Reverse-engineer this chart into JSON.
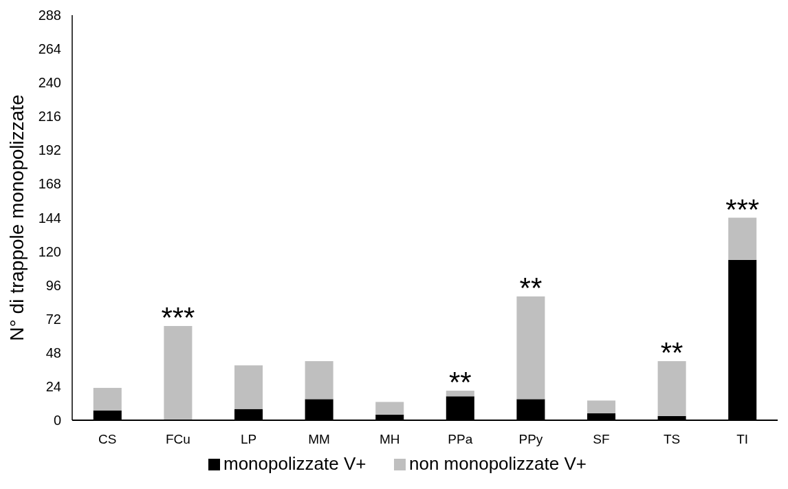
{
  "chart_data": {
    "type": "bar",
    "stacked": true,
    "ylabel": "N° di trappole monopolizzate",
    "categories": [
      "CS",
      "FCu",
      "LP",
      "MM",
      "MH",
      "PPa",
      "PPy",
      "SF",
      "TS",
      "TI"
    ],
    "series": [
      {
        "name": "monopolizzate V+",
        "color": "#000000",
        "values": [
          7,
          0,
          8,
          15,
          4,
          17,
          15,
          5,
          3,
          114
        ]
      },
      {
        "name": "non monopolizzate V+",
        "color": "#bfbfbf",
        "values": [
          16,
          67,
          31,
          27,
          9,
          4,
          73,
          9,
          39,
          30
        ]
      }
    ],
    "ylim": [
      0,
      288
    ],
    "yticks": [
      0,
      24,
      48,
      72,
      96,
      120,
      144,
      168,
      192,
      216,
      240,
      264,
      288
    ],
    "legend": "bottom",
    "annotations": [
      {
        "text": "***",
        "x": "FCu",
        "y": 67
      },
      {
        "text": "**",
        "x": "PPa",
        "y": 21
      },
      {
        "text": "**",
        "x": "PPy",
        "y": 88
      },
      {
        "text": "**",
        "x": "TS",
        "y": 42
      },
      {
        "text": "***",
        "x": "TI",
        "y": 144
      }
    ]
  }
}
